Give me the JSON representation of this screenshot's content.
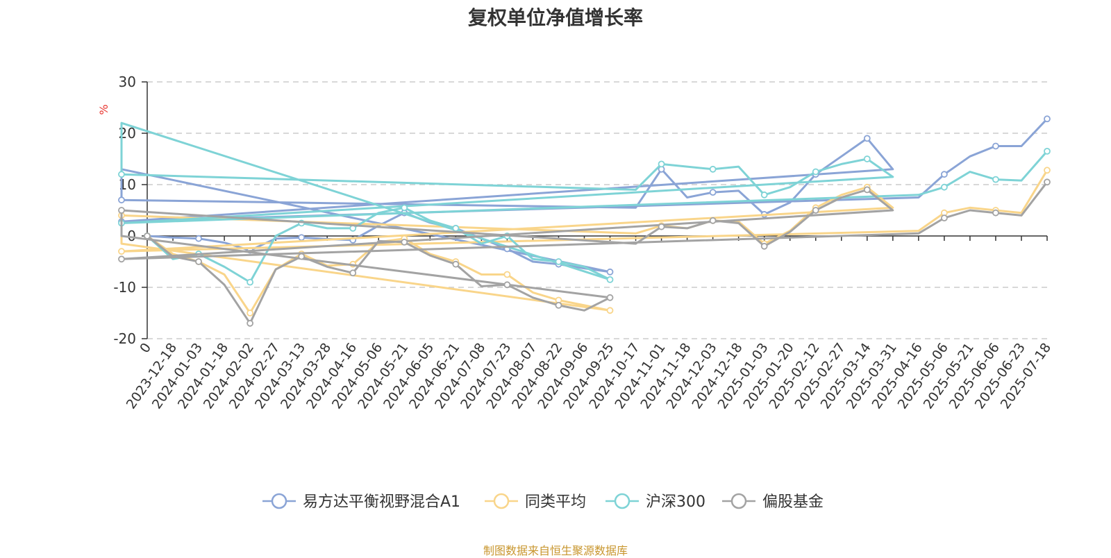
{
  "title": "复权单位净值增长率",
  "footer": "制图数据来自恒生聚源数据库",
  "chart_data": {
    "type": "line",
    "title": "复权单位净值增长率",
    "ylabel": "%",
    "ylim": [
      -20,
      30
    ],
    "yticks": [
      30,
      20,
      10,
      0,
      -10,
      -20
    ],
    "grid": true,
    "legend_position": "bottom",
    "x_tick_labels": [
      "0",
      "2023-12-18",
      "2024-01-03",
      "2024-01-18",
      "2024-02-02",
      "2024-02-27",
      "2024-03-13",
      "2024-03-28",
      "2024-04-16",
      "2024-05-06",
      "2024-05-21",
      "2024-06-05",
      "2024-06-21",
      "2024-07-08",
      "2024-07-23",
      "2024-08-07",
      "2024-08-22",
      "2024-09-06",
      "2024-09-25",
      "2024-10-17",
      "2024-11-01",
      "2024-11-18",
      "2024-12-03",
      "2024-12-18",
      "2025-01-03",
      "2025-01-20",
      "2025-02-12",
      "2025-02-27",
      "2025-03-14",
      "2025-03-31",
      "2025-04-16",
      "2025-05-06",
      "2025-05-21",
      "2025-06-06",
      "2025-06-23",
      "2025-07-18"
    ],
    "x": [
      "0",
      "2023-12-18",
      "2024-01-03",
      "2024-01-18",
      "2024-02-02",
      "2024-02-27",
      "2024-03-13",
      "2024-03-28",
      "2024-04-16",
      "2024-05-06",
      "2024-05-21",
      "2024-06-05",
      "2024-06-21",
      "2024-07-08",
      "2024-07-23",
      "2024-08-07",
      "2024-08-22",
      "2024-09-06",
      "2024-09-25",
      "2024-09-30",
      "2024-10-08",
      "2024-10-17",
      "2024-11-01",
      "2024-11-18",
      "2024-12-03",
      "2024-12-18",
      "2025-01-03",
      "2025-01-20",
      "2025-02-12",
      "2025-02-27",
      "2025-03-14",
      "2025-03-31",
      "2025-04-07",
      "2025-04-16",
      "2025-05-06",
      "2025-05-21",
      "2025-06-06",
      "2025-06-23",
      "2025-07-18"
    ],
    "series": [
      {
        "name": "易方达平衡视野混合A1",
        "color": "#8aa4d6",
        "values": [
          0,
          -0.3,
          -0.5,
          -1.3,
          -2.8,
          -0.5,
          -0.3,
          -0.6,
          -0.8,
          2,
          4.5,
          2.6,
          1.5,
          -0.5,
          -2.5,
          -5,
          -5.5,
          -6.3,
          -7,
          13,
          7,
          5.5,
          13,
          7.5,
          8.5,
          8.8,
          4.2,
          6.5,
          12,
          15.5,
          19,
          13,
          2.8,
          7.5,
          12,
          15.5,
          17.5,
          17.5,
          22.8
        ]
      },
      {
        "name": "同类平均",
        "color": "#f9d58a",
        "values": [
          0,
          -3.5,
          -5,
          -7.5,
          -15,
          -6.5,
          -3.5,
          -5.8,
          -5.5,
          -1.2,
          -0.5,
          -3.5,
          -5,
          -7.5,
          -7.5,
          -11,
          -12.5,
          -13.5,
          -14.5,
          -1.5,
          4,
          0.5,
          2,
          1.5,
          3,
          2.8,
          -1.5,
          1,
          5.5,
          8,
          9.5,
          5.5,
          -3,
          1,
          4.5,
          5.5,
          5,
          4.5,
          12.8
        ]
      },
      {
        "name": "沪深300",
        "color": "#7ed3d6",
        "values": [
          0,
          -4.5,
          -3.5,
          -6,
          -9,
          0,
          2.5,
          1.5,
          1.5,
          4.5,
          5.5,
          3,
          1.5,
          -1.5,
          0,
          -4.5,
          -5,
          -6,
          -8.5,
          22,
          12,
          9,
          14,
          13.5,
          13,
          13.5,
          8,
          9.5,
          12.5,
          14,
          15,
          11.5,
          2.5,
          8,
          9.5,
          12.5,
          11,
          10.8,
          16.5
        ]
      },
      {
        "name": "偏股基金",
        "color": "#a3a3a3",
        "values": [
          0,
          -4,
          -5,
          -9.5,
          -17,
          -6.5,
          -4,
          -6,
          -7.2,
          -1,
          -1.2,
          -3.8,
          -5.5,
          -9.8,
          -9.5,
          -12,
          -13.5,
          -14.5,
          -12,
          0,
          5,
          -1.5,
          1.8,
          1.5,
          3,
          2.5,
          -2,
          0.8,
          5,
          7.5,
          9,
          5,
          -4.5,
          0.5,
          3.5,
          5,
          4.5,
          4,
          10.5
        ]
      }
    ]
  }
}
